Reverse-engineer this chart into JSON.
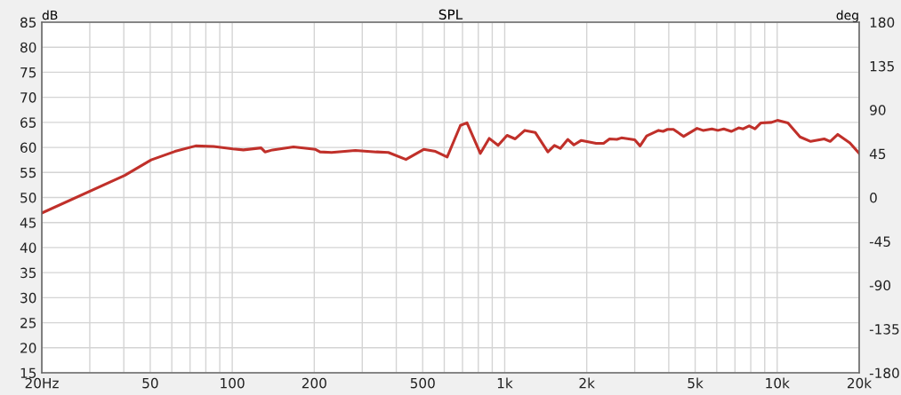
{
  "chart_data": {
    "type": "line",
    "title": "SPL",
    "ylabel": "dB",
    "y2label": "deg",
    "log": "x",
    "grid": true,
    "marker": "none",
    "line_style": "solid",
    "xlim": [
      20,
      20000
    ],
    "ylim": [
      15,
      85
    ],
    "y2lim": [
      -180,
      180
    ],
    "xticks": [
      {
        "value": 20,
        "label": "20Hz"
      },
      {
        "value": 30,
        "label": null
      },
      {
        "value": 40,
        "label": null
      },
      50,
      {
        "value": 60,
        "label": null
      },
      {
        "value": 70,
        "label": null
      },
      {
        "value": 80,
        "label": null
      },
      {
        "value": 90,
        "label": null
      },
      100,
      200,
      {
        "value": 300,
        "label": null
      },
      {
        "value": 400,
        "label": null
      },
      500,
      {
        "value": 600,
        "label": null
      },
      {
        "value": 700,
        "label": null
      },
      {
        "value": 800,
        "label": null
      },
      {
        "value": 900,
        "label": null
      },
      {
        "value": 1000,
        "label": "1k"
      },
      {
        "value": 2000,
        "label": "2k"
      },
      {
        "value": 3000,
        "label": null
      },
      {
        "value": 4000,
        "label": null
      },
      {
        "value": 5000,
        "label": "5k"
      },
      {
        "value": 6000,
        "label": null
      },
      {
        "value": 7000,
        "label": null
      },
      {
        "value": 8000,
        "label": null
      },
      {
        "value": 9000,
        "label": null
      },
      {
        "value": 10000,
        "label": "10k"
      },
      {
        "value": 20000,
        "label": "20k"
      }
    ],
    "yticks": [
      15,
      20,
      25,
      30,
      35,
      40,
      45,
      50,
      55,
      60,
      65,
      70,
      75,
      80,
      85
    ],
    "y2ticks": [
      -180,
      -135,
      -90,
      -45,
      0,
      45,
      90,
      135,
      180
    ],
    "series": [
      {
        "color": "#c0302a",
        "x": [
          20,
          40.3,
          50.4,
          61.6,
          73.4,
          85.4,
          100.6,
          109.9,
          127.6,
          131.9,
          140.6,
          167.8,
          202,
          210,
          231.6,
          283,
          338,
          374,
          434,
          504,
          557,
          615,
          688,
          727,
          814,
          877,
          946,
          1020,
          1093,
          1185,
          1294,
          1440,
          1522,
          1600,
          1705,
          1794,
          1910,
          2165,
          2306,
          2425,
          2581,
          2681,
          3000,
          3139,
          3319,
          3670,
          3812,
          3958,
          4161,
          4538,
          5082,
          5345,
          5761,
          6058,
          6370,
          6784,
          7220,
          7500,
          7890,
          8290,
          8720,
          9530,
          10020,
          10950,
          12130,
          13270,
          14880,
          15650,
          16690,
          18480,
          20000
        ],
        "values": [
          46.9,
          54.4,
          57.5,
          59.2,
          60.3,
          60.2,
          59.7,
          59.5,
          59.9,
          59.1,
          59.5,
          60.1,
          59.6,
          59.1,
          59.0,
          59.4,
          59.1,
          59.0,
          57.6,
          59.6,
          59.2,
          58.1,
          64.4,
          64.9,
          58.8,
          61.8,
          60.4,
          62.4,
          61.7,
          63.4,
          63.0,
          59.1,
          60.4,
          59.8,
          61.6,
          60.5,
          61.4,
          60.8,
          60.8,
          61.7,
          61.6,
          61.9,
          61.5,
          60.3,
          62.3,
          63.4,
          63.2,
          63.6,
          63.6,
          62.2,
          63.8,
          63.4,
          63.7,
          63.4,
          63.7,
          63.2,
          63.9,
          63.7,
          64.3,
          63.7,
          64.9,
          65.0,
          65.4,
          64.9,
          62.1,
          61.2,
          61.7,
          61.2,
          62.6,
          60.9,
          58.8
        ]
      }
    ]
  }
}
